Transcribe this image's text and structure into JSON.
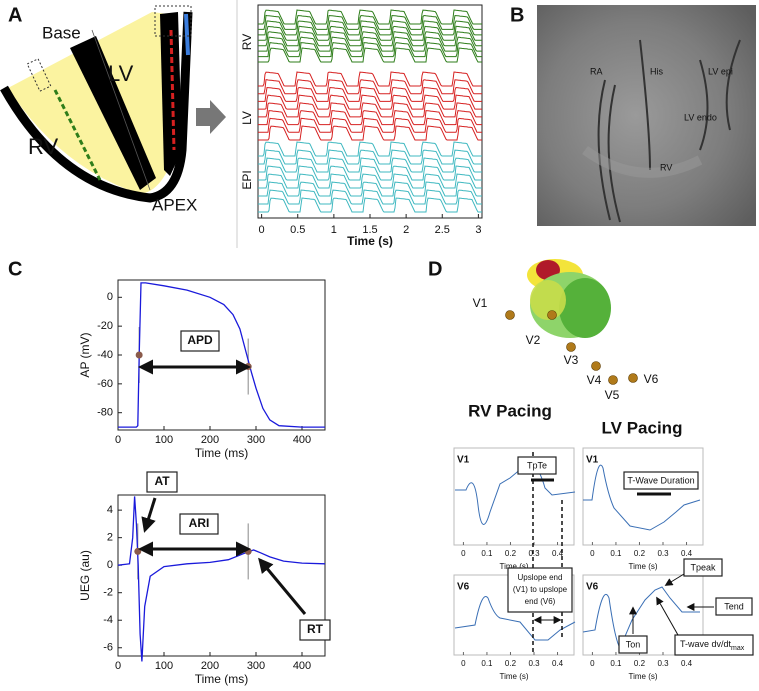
{
  "panel_a": {
    "letter": "A",
    "base": "Base",
    "lv": "LV",
    "rv": "RV",
    "apex": "APEX",
    "traces": {
      "y_labels": [
        "RV",
        "LV",
        "EPI"
      ],
      "x_label": "Time (s)",
      "xlim": [
        -0.05,
        3.05
      ],
      "xticks": [
        0,
        0.5,
        1,
        1.5,
        2,
        2.5,
        3
      ]
    }
  },
  "panel_b": {
    "letter": "B",
    "labels": [
      "RA",
      "His",
      "LV epi",
      "LV endo",
      "RV"
    ]
  },
  "panel_c": {
    "letter": "C",
    "ap": {
      "x_label": "Time (ms)",
      "y_label": "AP (mV)",
      "xlim": [
        0,
        450
      ],
      "ylim": [
        -92,
        12
      ],
      "xticks": [
        0,
        100,
        200,
        300,
        400
      ],
      "yticks": [
        0,
        -20,
        -40,
        -60,
        -80
      ],
      "color": "#1a1adb",
      "x": [
        0,
        40,
        43,
        46,
        50,
        60,
        100,
        150,
        200,
        230,
        250,
        265,
        280,
        290,
        300,
        315,
        330,
        350,
        400,
        450
      ],
      "values": [
        -90,
        -90,
        -89,
        -40,
        10,
        10,
        8,
        5,
        0,
        -5,
        -12,
        -22,
        -40,
        -52,
        -63,
        -77,
        -85,
        -89,
        -90,
        -90
      ],
      "markers": {
        "x": [
          46,
          283
        ],
        "values": [
          -40,
          -48
        ]
      },
      "annotation": "APD"
    },
    "ueg": {
      "x_label": "Time (ms)",
      "y_label": "UEG (au)",
      "xlim": [
        0,
        450
      ],
      "ylim": [
        -6.6,
        5.1
      ],
      "xticks": [
        0,
        100,
        200,
        300,
        400
      ],
      "yticks": [
        4,
        2,
        0,
        -2,
        -4,
        -6
      ],
      "color": "#1a1adb",
      "x": [
        0,
        25,
        32,
        36,
        40,
        44,
        48,
        52,
        58,
        70,
        100,
        150,
        200,
        240,
        270,
        285,
        295,
        310,
        330,
        360,
        400,
        450
      ],
      "values": [
        0,
        0.1,
        2,
        5,
        3,
        0,
        -5,
        -7,
        -3,
        -0.8,
        -0.1,
        0.1,
        0.2,
        0.4,
        0.8,
        1.0,
        1.1,
        0.9,
        0.6,
        0.3,
        0.15,
        0.1
      ],
      "markers": {
        "x": [
          43,
          283
        ],
        "values": [
          1,
          1
        ]
      },
      "at": "AT",
      "ari": "ARI",
      "rt": "RT"
    }
  },
  "panel_d": {
    "letter": "D",
    "electrodes": [
      "V1",
      "V2",
      "V3",
      "V4",
      "V5",
      "V6"
    ],
    "rv_title": "RV Pacing",
    "lv_title": "LV Pacing",
    "xlim": [
      -0.04,
      0.47
    ],
    "xticks": [
      0,
      0.1,
      0.2,
      0.3,
      0.4
    ],
    "x_label": "Time (s)",
    "plots": [
      {
        "lead": "V1"
      },
      {
        "lead": "V1"
      },
      {
        "lead": "V6"
      },
      {
        "lead": "V6"
      }
    ],
    "annotations": {
      "tpte": "TpTe",
      "t_wave_duration": "T-Wave Duration",
      "upslope": [
        "Upslope end",
        "(V1) to upslope",
        "end (V6)"
      ],
      "tpeak": "Tpeak",
      "tend": "Tend",
      "ton": "Ton",
      "dvdt": "T-wave dv/dt",
      "dvdt_sub": "max"
    }
  }
}
